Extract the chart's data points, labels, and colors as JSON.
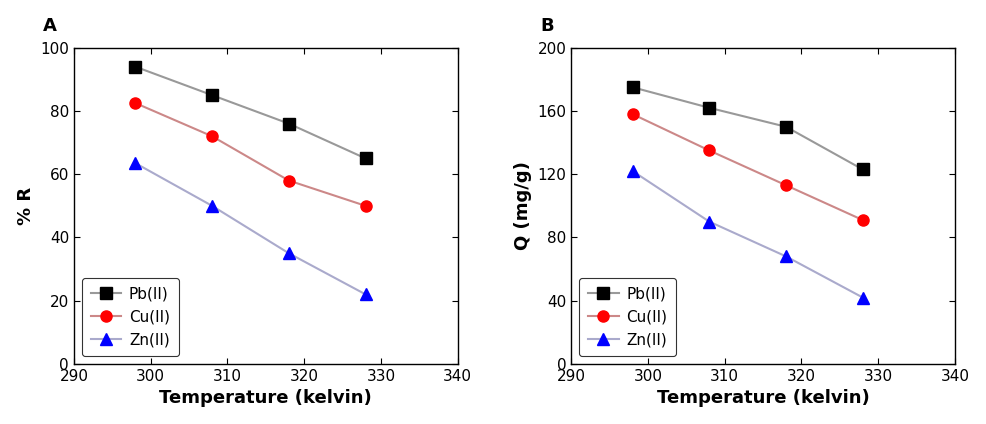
{
  "temperature": [
    298,
    308,
    318,
    328
  ],
  "panel_A": {
    "label": "A",
    "ylabel": "% R",
    "ylim": [
      0,
      100
    ],
    "yticks": [
      0,
      20,
      40,
      60,
      80,
      100
    ],
    "series": [
      {
        "name": "Pb(II)",
        "values": [
          94,
          85,
          76,
          65
        ],
        "line_color": "#999999",
        "marker": "s",
        "marker_facecolor": "black",
        "marker_edgecolor": "black"
      },
      {
        "name": "Cu(II)",
        "values": [
          82.5,
          72,
          58,
          50
        ],
        "line_color": "#cc8888",
        "marker": "o",
        "marker_facecolor": "red",
        "marker_edgecolor": "red"
      },
      {
        "name": "Zn(II)",
        "values": [
          63.5,
          50,
          35,
          22
        ],
        "line_color": "#aaaacc",
        "marker": "^",
        "marker_facecolor": "blue",
        "marker_edgecolor": "blue"
      }
    ]
  },
  "panel_B": {
    "label": "B",
    "ylabel": "Q (mg/g)",
    "ylim": [
      0,
      200
    ],
    "yticks": [
      0,
      40,
      80,
      120,
      160,
      200
    ],
    "series": [
      {
        "name": "Pb(II)",
        "values": [
          175,
          162,
          150,
          123
        ],
        "line_color": "#999999",
        "marker": "s",
        "marker_facecolor": "black",
        "marker_edgecolor": "black"
      },
      {
        "name": "Cu(II)",
        "values": [
          158,
          135,
          113,
          91
        ],
        "line_color": "#cc8888",
        "marker": "o",
        "marker_facecolor": "red",
        "marker_edgecolor": "red"
      },
      {
        "name": "Zn(II)",
        "values": [
          122,
          90,
          68,
          42
        ],
        "line_color": "#aaaacc",
        "marker": "^",
        "marker_facecolor": "blue",
        "marker_edgecolor": "blue"
      }
    ]
  },
  "xlabel": "Temperature (kelvin)",
  "xlim": [
    290,
    340
  ],
  "xticks": [
    290,
    300,
    310,
    320,
    330,
    340
  ],
  "label_fontsize": 13,
  "tick_fontsize": 11,
  "legend_fontsize": 11,
  "marker_size": 8,
  "line_width": 1.5,
  "panel_label_fontsize": 13,
  "background_color": "white"
}
